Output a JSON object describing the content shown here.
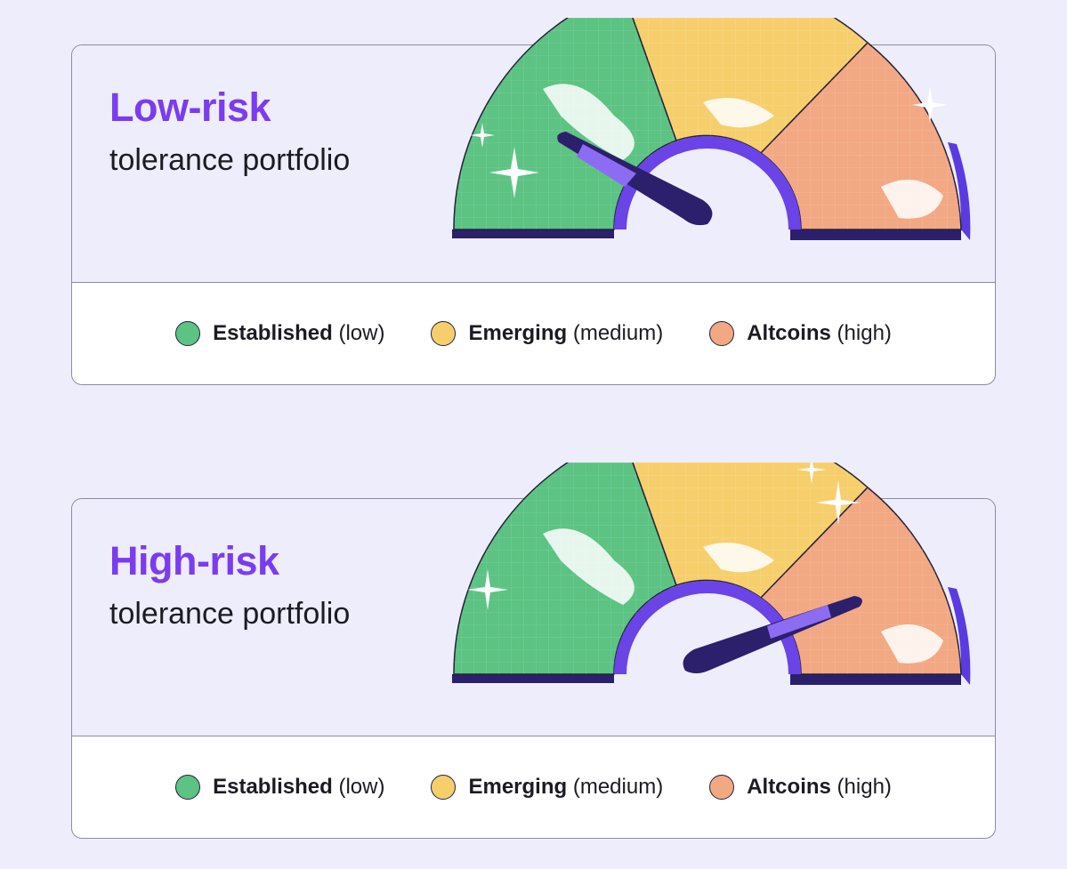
{
  "colors": {
    "low": "#5cc383",
    "medium": "#f6cf6c",
    "high": "#f2a883",
    "accent": "#7a3cf0",
    "dark": "#2c1f6b"
  },
  "panels": [
    {
      "title": "Low-risk",
      "subtitle": "tolerance portfolio",
      "legend": [
        {
          "name": "Established",
          "qualifier": "(low)"
        },
        {
          "name": "Emerging",
          "qualifier": "(medium)"
        },
        {
          "name": "Altcoins",
          "qualifier": "(high)"
        }
      ],
      "needle_level": "low"
    },
    {
      "title": "High-risk",
      "subtitle": "tolerance portfolio",
      "legend": [
        {
          "name": "Established",
          "qualifier": "(low)"
        },
        {
          "name": "Emerging",
          "qualifier": "(medium)"
        },
        {
          "name": "Altcoins",
          "qualifier": "(high)"
        }
      ],
      "needle_level": "high"
    }
  ]
}
